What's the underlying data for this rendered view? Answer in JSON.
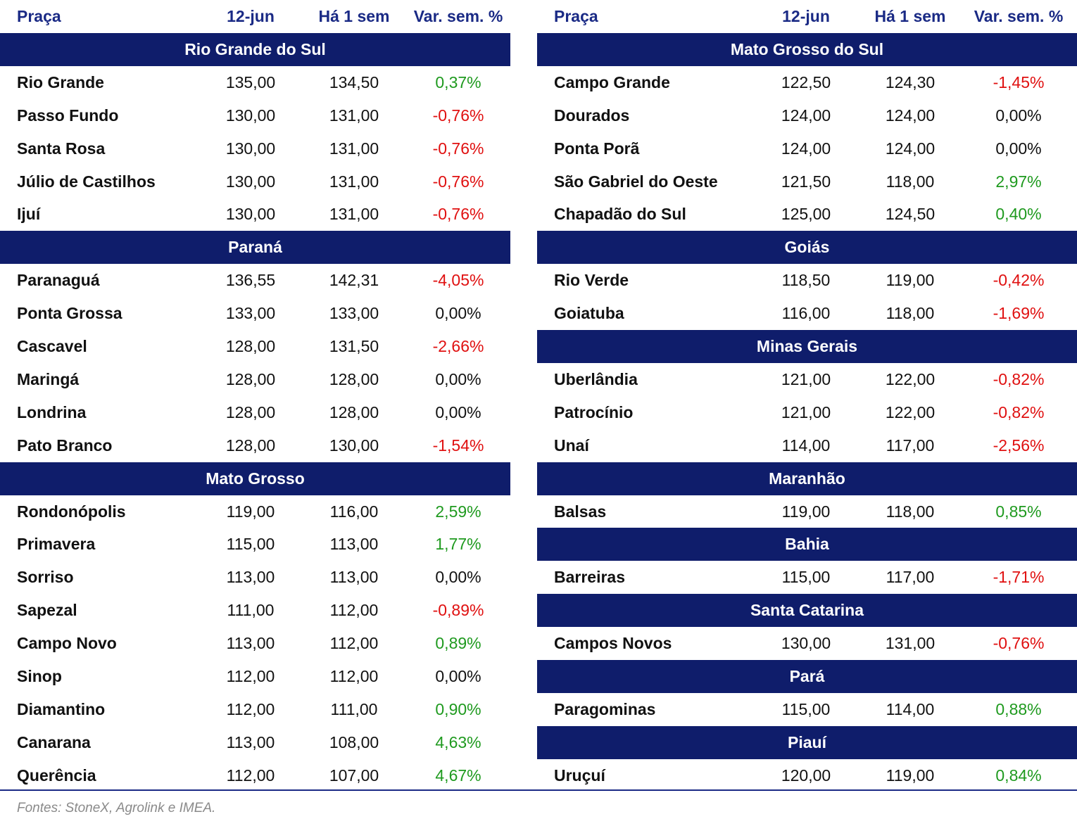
{
  "tables": [
    {
      "columns": [
        "Praça",
        "12-jun",
        "Há 1 sem",
        "Var. sem. %"
      ],
      "sections": [
        {
          "name": "Rio Grande do Sul",
          "rows": [
            [
              "Rio Grande",
              "135,00",
              "134,50",
              "0,37%"
            ],
            [
              "Passo Fundo",
              "130,00",
              "131,00",
              "-0,76%"
            ],
            [
              "Santa Rosa",
              "130,00",
              "131,00",
              "-0,76%"
            ],
            [
              "Júlio de Castilhos",
              "130,00",
              "131,00",
              "-0,76%"
            ],
            [
              "Ijuí",
              "130,00",
              "131,00",
              "-0,76%"
            ]
          ]
        },
        {
          "name": "Paraná",
          "rows": [
            [
              "Paranaguá",
              "136,55",
              "142,31",
              "-4,05%"
            ],
            [
              "Ponta Grossa",
              "133,00",
              "133,00",
              "0,00%"
            ],
            [
              "Cascavel",
              "128,00",
              "131,50",
              "-2,66%"
            ],
            [
              "Maringá",
              "128,00",
              "128,00",
              "0,00%"
            ],
            [
              "Londrina",
              "128,00",
              "128,00",
              "0,00%"
            ],
            [
              "Pato Branco",
              "128,00",
              "130,00",
              "-1,54%"
            ]
          ]
        },
        {
          "name": "Mato Grosso",
          "rows": [
            [
              "Rondonópolis",
              "119,00",
              "116,00",
              "2,59%"
            ],
            [
              "Primavera",
              "115,00",
              "113,00",
              "1,77%"
            ],
            [
              "Sorriso",
              "113,00",
              "113,00",
              "0,00%"
            ],
            [
              "Sapezal",
              "111,00",
              "112,00",
              "-0,89%"
            ],
            [
              "Campo Novo",
              "113,00",
              "112,00",
              "0,89%"
            ],
            [
              "Sinop",
              "112,00",
              "112,00",
              "0,00%"
            ],
            [
              "Diamantino",
              "112,00",
              "111,00",
              "0,90%"
            ],
            [
              "Canarana",
              "113,00",
              "108,00",
              "4,63%"
            ],
            [
              "Querência",
              "112,00",
              "107,00",
              "4,67%"
            ]
          ]
        }
      ]
    },
    {
      "columns": [
        "Praça",
        "12-jun",
        "Há 1 sem",
        "Var. sem. %"
      ],
      "sections": [
        {
          "name": "Mato Grosso do Sul",
          "rows": [
            [
              "Campo Grande",
              "122,50",
              "124,30",
              "-1,45%"
            ],
            [
              "Dourados",
              "124,00",
              "124,00",
              "0,00%"
            ],
            [
              "Ponta Porã",
              "124,00",
              "124,00",
              "0,00%"
            ],
            [
              "São Gabriel do Oeste",
              "121,50",
              "118,00",
              "2,97%"
            ],
            [
              "Chapadão do Sul",
              "125,00",
              "124,50",
              "0,40%"
            ]
          ]
        },
        {
          "name": "Goiás",
          "rows": [
            [
              "Rio Verde",
              "118,50",
              "119,00",
              "-0,42%"
            ],
            [
              "Goiatuba",
              "116,00",
              "118,00",
              "-1,69%"
            ]
          ]
        },
        {
          "name": "Minas Gerais",
          "rows": [
            [
              "Uberlândia",
              "121,00",
              "122,00",
              "-0,82%"
            ],
            [
              "Patrocínio",
              "121,00",
              "122,00",
              "-0,82%"
            ],
            [
              "Unaí",
              "114,00",
              "117,00",
              "-2,56%"
            ]
          ]
        },
        {
          "name": "Maranhão",
          "rows": [
            [
              "Balsas",
              "119,00",
              "118,00",
              "0,85%"
            ]
          ]
        },
        {
          "name": "Bahia",
          "rows": [
            [
              "Barreiras",
              "115,00",
              "117,00",
              "-1,71%"
            ]
          ]
        },
        {
          "name": "Santa Catarina",
          "rows": [
            [
              "Campos Novos",
              "130,00",
              "131,00",
              "-0,76%"
            ]
          ]
        },
        {
          "name": "Pará",
          "rows": [
            [
              "Paragominas",
              "115,00",
              "114,00",
              "0,88%"
            ]
          ]
        },
        {
          "name": "Piauí",
          "rows": [
            [
              "Uruçuí",
              "120,00",
              "119,00",
              "0,84%"
            ]
          ]
        }
      ]
    }
  ],
  "footnote": "Fontes: StoneX, Agrolink e IMEA."
}
